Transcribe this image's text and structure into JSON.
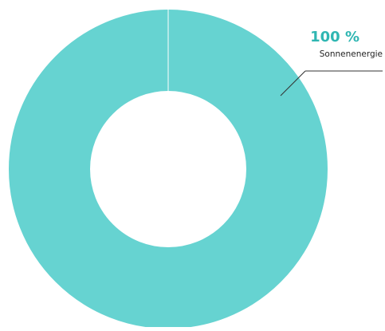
{
  "chart_data": {
    "type": "pie",
    "donut": true,
    "slices": [
      {
        "label": "Sonnenenergie",
        "value": 100,
        "value_label": "100 %",
        "color": "#66d3d1"
      }
    ]
  },
  "colors": {
    "slice": "#66d3d1",
    "value_label": "#2fb6b2",
    "leader_line": "#333333",
    "background": "#ffffff"
  }
}
